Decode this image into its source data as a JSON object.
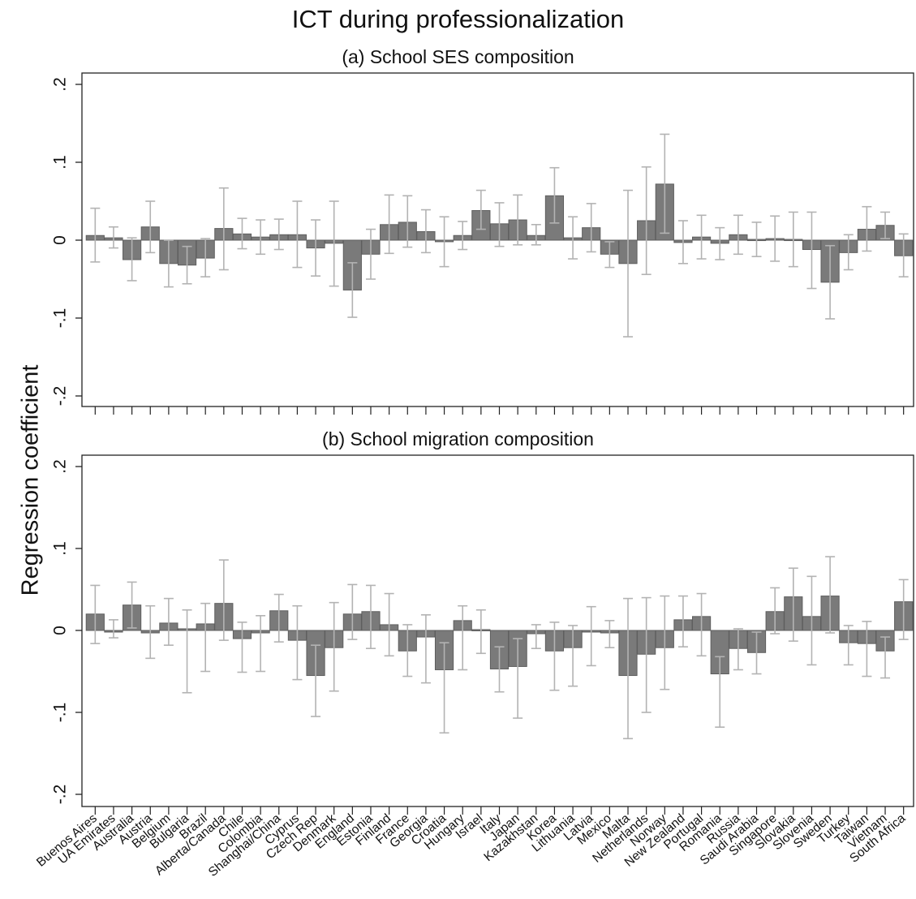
{
  "figure": {
    "title": "ICT during professionalization",
    "ylabel": "Regression coefficient"
  },
  "chart_data": [
    {
      "type": "bar",
      "title": "(a) School SES composition",
      "ylabel": "Regression coefficient",
      "ylim": [
        -0.2,
        0.2
      ],
      "yticks": [
        -0.2,
        -0.1,
        0,
        0.1,
        0.2
      ],
      "ytick_labels": [
        "-.2",
        "-.1",
        "0",
        ".1",
        ".2"
      ],
      "error_bars": true,
      "grid": false,
      "categories": [
        "Buenos Aires",
        "UA Emirates",
        "Australia",
        "Austria",
        "Belgium",
        "Bulgaria",
        "Brazil",
        "Alberta/Canada",
        "Chile",
        "Colombia",
        "Shanghai/China",
        "Cyprus",
        "Czech Rep",
        "Denmark",
        "England",
        "Estonia",
        "Finland",
        "France",
        "Georgia",
        "Croatia",
        "Hungary",
        "Israel",
        "Italy",
        "Japan",
        "Kazakhstan",
        "Korea",
        "Lithuania",
        "Latvia",
        "Mexico",
        "Malta",
        "Netherlands",
        "Norway",
        "New Zealand",
        "Portugal",
        "Romania",
        "Russia",
        "Saudi Arabia",
        "Singapore",
        "Slovakia",
        "Slovenia",
        "Sweden",
        "Turkey",
        "Taiwan",
        "Vietnam",
        "South Africa"
      ],
      "values": [
        0.006,
        0.003,
        -0.025,
        0.017,
        -0.03,
        -0.032,
        -0.023,
        0.015,
        0.008,
        0.004,
        0.007,
        0.007,
        -0.01,
        -0.004,
        -0.064,
        -0.018,
        0.02,
        0.023,
        0.011,
        -0.002,
        0.006,
        0.038,
        0.021,
        0.026,
        0.006,
        0.057,
        0.003,
        0.016,
        -0.018,
        -0.03,
        0.025,
        0.072,
        -0.003,
        0.004,
        -0.004,
        0.007,
        0.001,
        0.002,
        0.001,
        -0.012,
        -0.054,
        -0.016,
        0.014,
        0.019,
        -0.02
      ],
      "ci_low": [
        -0.028,
        -0.01,
        -0.052,
        -0.016,
        -0.06,
        -0.056,
        -0.047,
        -0.038,
        -0.011,
        -0.018,
        -0.012,
        -0.035,
        -0.046,
        -0.059,
        -0.099,
        -0.05,
        -0.017,
        -0.009,
        -0.016,
        -0.034,
        -0.012,
        0.014,
        -0.008,
        -0.006,
        -0.006,
        0.022,
        -0.024,
        -0.015,
        -0.035,
        -0.124,
        -0.044,
        0.009,
        -0.03,
        -0.024,
        -0.025,
        -0.018,
        -0.021,
        -0.027,
        -0.034,
        -0.062,
        -0.101,
        -0.038,
        -0.014,
        0.002,
        -0.047
      ],
      "ci_high": [
        0.041,
        0.017,
        0.003,
        0.05,
        0.0,
        -0.008,
        0.002,
        0.067,
        0.028,
        0.026,
        0.027,
        0.05,
        0.026,
        0.05,
        -0.029,
        0.014,
        0.058,
        0.057,
        0.039,
        0.03,
        0.024,
        0.064,
        0.048,
        0.058,
        0.02,
        0.093,
        0.03,
        0.047,
        -0.002,
        0.064,
        0.094,
        0.136,
        0.025,
        0.032,
        0.016,
        0.032,
        0.023,
        0.031,
        0.036,
        0.036,
        -0.007,
        0.007,
        0.043,
        0.036,
        0.008
      ]
    },
    {
      "type": "bar",
      "title": "(b) School migration composition",
      "ylabel": "Regression coefficient",
      "ylim": [
        -0.2,
        0.2
      ],
      "yticks": [
        -0.2,
        -0.1,
        0,
        0.1,
        0.2
      ],
      "ytick_labels": [
        "-.2",
        "-.1",
        "0",
        ".1",
        ".2"
      ],
      "error_bars": true,
      "grid": false,
      "categories": [
        "Buenos Aires",
        "UA Emirates",
        "Australia",
        "Austria",
        "Belgium",
        "Bulgaria",
        "Brazil",
        "Alberta/Canada",
        "Chile",
        "Colombia",
        "Shanghai/China",
        "Cyprus",
        "Czech Rep",
        "Denmark",
        "England",
        "Estonia",
        "Finland",
        "France",
        "Georgia",
        "Croatia",
        "Hungary",
        "Israel",
        "Italy",
        "Japan",
        "Kazakhstan",
        "Korea",
        "Lithuania",
        "Latvia",
        "Mexico",
        "Malta",
        "Netherlands",
        "Norway",
        "New Zealand",
        "Portugal",
        "Romania",
        "Russia",
        "Saudi Arabia",
        "Singapore",
        "Slovakia",
        "Slovenia",
        "Sweden",
        "Turkey",
        "Taiwan",
        "Vietnam",
        "South Africa"
      ],
      "values": [
        0.02,
        -0.002,
        0.031,
        -0.003,
        0.009,
        0.002,
        0.008,
        0.033,
        -0.01,
        -0.003,
        0.024,
        -0.012,
        -0.055,
        -0.021,
        0.02,
        0.023,
        0.007,
        -0.025,
        -0.008,
        -0.048,
        0.012,
        0.001,
        -0.047,
        -0.044,
        -0.004,
        -0.025,
        -0.021,
        -0.002,
        -0.003,
        -0.055,
        -0.029,
        -0.021,
        0.013,
        0.017,
        -0.053,
        -0.022,
        -0.027,
        0.023,
        0.041,
        0.017,
        0.042,
        -0.015,
        -0.016,
        -0.025,
        0.035
      ],
      "ci_low": [
        -0.016,
        -0.009,
        0.003,
        -0.034,
        -0.018,
        -0.076,
        -0.05,
        -0.012,
        -0.051,
        -0.05,
        -0.014,
        -0.06,
        -0.105,
        -0.074,
        -0.011,
        -0.022,
        -0.031,
        -0.056,
        -0.064,
        -0.125,
        -0.048,
        -0.028,
        -0.075,
        -0.107,
        -0.022,
        -0.073,
        -0.068,
        -0.043,
        -0.021,
        -0.132,
        -0.1,
        -0.072,
        -0.02,
        -0.031,
        -0.118,
        -0.048,
        -0.053,
        -0.004,
        -0.013,
        -0.042,
        -0.003,
        -0.042,
        -0.056,
        -0.058,
        -0.011
      ],
      "ci_high": [
        0.055,
        0.013,
        0.059,
        0.03,
        0.039,
        0.025,
        0.033,
        0.086,
        0.01,
        0.018,
        0.044,
        0.03,
        -0.018,
        0.034,
        0.056,
        0.055,
        0.045,
        0.007,
        0.019,
        -0.015,
        0.03,
        0.025,
        -0.02,
        -0.01,
        0.007,
        0.01,
        0.006,
        0.029,
        0.012,
        0.039,
        0.04,
        0.042,
        0.042,
        0.045,
        -0.032,
        0.002,
        -0.002,
        0.052,
        0.076,
        0.066,
        0.09,
        0.006,
        0.011,
        -0.008,
        0.062
      ]
    }
  ]
}
